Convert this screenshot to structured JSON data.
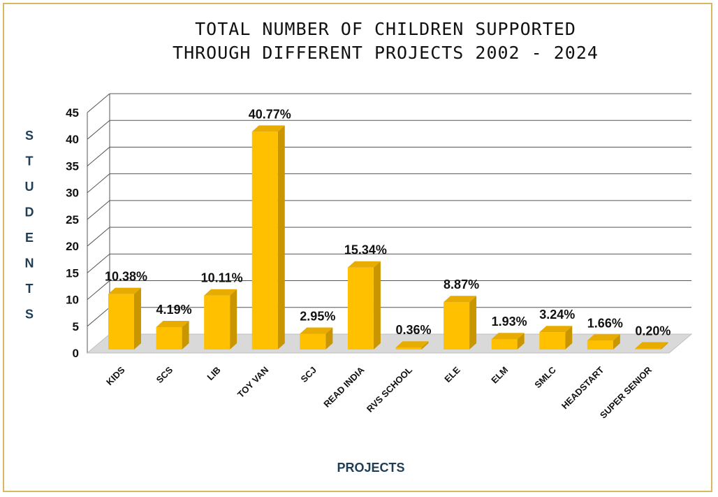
{
  "chart_data": {
    "type": "bar",
    "title_lines": [
      "TOTAL NUMBER OF CHILDREN SUPPORTED",
      "THROUGH DIFFERENT PROJECTS  2002 - 2024"
    ],
    "xlabel": "PROJECTS",
    "ylabel": "STUDENTS",
    "ylim": [
      0,
      45
    ],
    "yticks": [
      "0",
      "5",
      "10",
      "15",
      "20",
      "25",
      "30",
      "35",
      "40",
      "45"
    ],
    "grid": true,
    "categories": [
      "KIDS",
      "SCS",
      "LIB",
      "TOY VAN",
      "SCJ",
      "READ INDIA",
      "RVS SCHOOL",
      "ELE",
      "ELM",
      "SMLC",
      "HEADSTART",
      "SUPER SENIOR"
    ],
    "values": [
      10.38,
      4.19,
      10.11,
      40.77,
      2.95,
      15.34,
      0.36,
      8.87,
      1.93,
      3.24,
      1.66,
      0.2
    ],
    "data_labels": [
      "10.38%",
      "4.19%",
      "10.11%",
      "40.77%",
      "2.95%",
      "15.34%",
      "0.36%",
      "8.87%",
      "1.93%",
      "3.24%",
      "1.66%",
      "0.20%"
    ],
    "bar_color": "#ffc000",
    "bar_side_color": "#c99600",
    "bar_top_color": "#e8ac00"
  }
}
